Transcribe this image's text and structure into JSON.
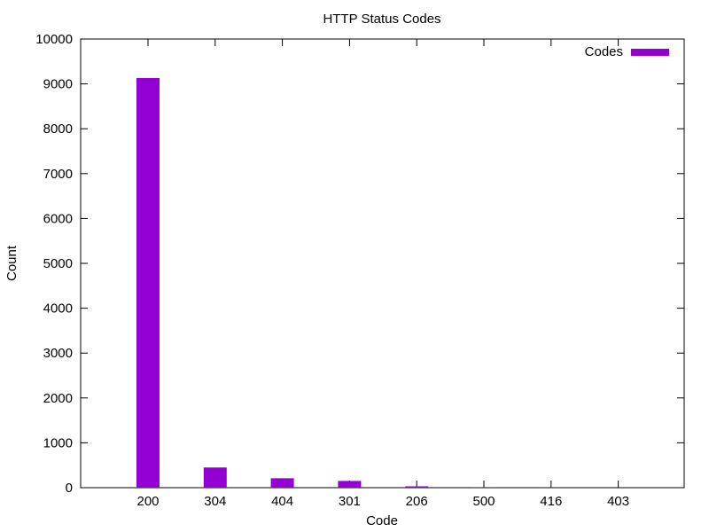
{
  "chart_data": {
    "type": "bar",
    "title": "HTTP Status Codes",
    "xlabel": "Code",
    "ylabel": "Count",
    "categories": [
      "200",
      "304",
      "404",
      "301",
      "206",
      "500",
      "416",
      "403"
    ],
    "series": [
      {
        "name": "Codes",
        "values": [
          9130,
          450,
          210,
          150,
          30,
          3,
          2,
          1
        ]
      }
    ],
    "ylim": [
      0,
      10000
    ],
    "yticks": [
      "0",
      "1000",
      "2000",
      "3000",
      "4000",
      "5000",
      "6000",
      "7000",
      "8000",
      "9000",
      "10000"
    ],
    "grid": false,
    "legend_position": "top-right",
    "colors": {
      "bar": "#9400d3",
      "axis": "#000000",
      "background": "#ffffff"
    }
  }
}
